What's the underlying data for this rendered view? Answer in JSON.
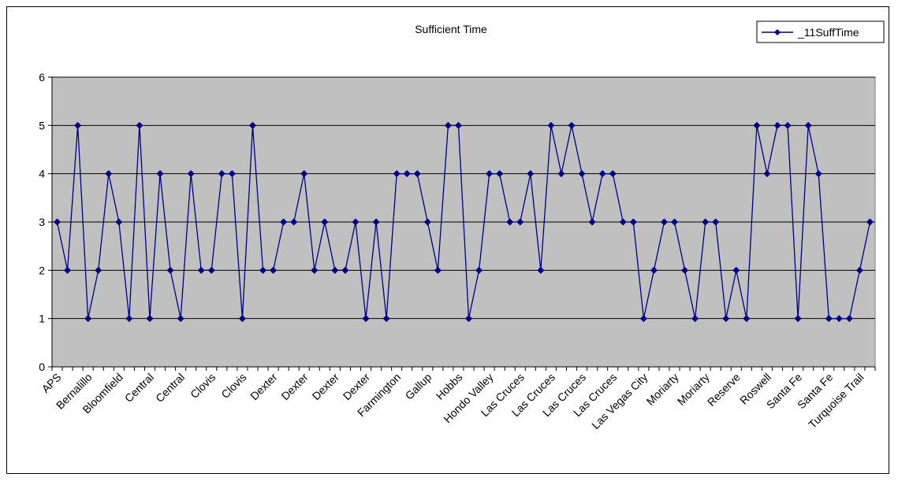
{
  "chart_data": {
    "type": "line",
    "title": "Sufficient Time",
    "xlabel": "",
    "ylabel": "",
    "ylim": [
      0,
      6
    ],
    "yticks": [
      0,
      1,
      2,
      3,
      4,
      5,
      6
    ],
    "grid": true,
    "legend": "top-right",
    "plot_background": "#c0c0c0",
    "series_color": "#000080",
    "series": [
      {
        "name": "_11SuffTime",
        "values": [
          3,
          2,
          5,
          1,
          2,
          4,
          3,
          1,
          5,
          1,
          4,
          2,
          1,
          4,
          2,
          2,
          4,
          4,
          1,
          5,
          2,
          2,
          3,
          3,
          4,
          2,
          3,
          2,
          2,
          3,
          1,
          3,
          1,
          4,
          4,
          4,
          3,
          2,
          5,
          5,
          1,
          2,
          4,
          4,
          3,
          3,
          4,
          2,
          5,
          4,
          5,
          4,
          3,
          4,
          4,
          3,
          3,
          1,
          2,
          3,
          3,
          2,
          1,
          3,
          3,
          1,
          2,
          1,
          5,
          4,
          5,
          5,
          1,
          5,
          4,
          1,
          1,
          1,
          2,
          3
        ]
      }
    ],
    "x_tick_labels": [
      "APS",
      "Bernalillo",
      "Bloomfield",
      "Central",
      "Central",
      "Clovis",
      "Clovis",
      "Dexter",
      "Dexter",
      "Dexter",
      "Dexter",
      "Farmington",
      "Gallup",
      "Hobbs",
      "Hondo Valley",
      "Las Cruces",
      "Las Cruces",
      "Las Cruces",
      "Las Cruces",
      "Las Vegas City",
      "Moriarty",
      "Moriarty",
      "Reserve",
      "Roswell",
      "Santa Fe",
      "Santa Fe",
      "Turquoise Trail"
    ]
  }
}
